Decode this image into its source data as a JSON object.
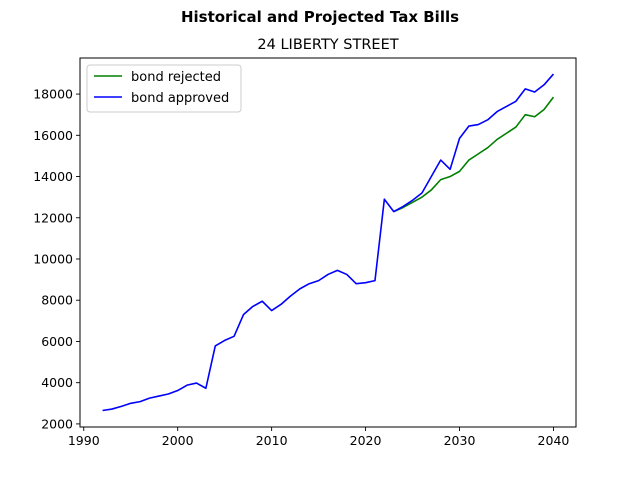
{
  "figure": {
    "suptitle": "Historical and Projected Tax Bills",
    "title": "24 LIBERTY STREET"
  },
  "chart_data": {
    "type": "line",
    "title": "Historical and Projected Tax Bills",
    "subtitle": "24 LIBERTY STREET",
    "xlabel": "",
    "ylabel": "",
    "xlim": [
      1989.6,
      2042.4
    ],
    "ylim": [
      1850,
      19750
    ],
    "xticks": [
      1990,
      2000,
      2010,
      2020,
      2030,
      2040
    ],
    "yticks": [
      2000,
      4000,
      6000,
      8000,
      10000,
      12000,
      14000,
      16000,
      18000
    ],
    "grid": false,
    "legend": {
      "position": "top-left"
    },
    "series": [
      {
        "name": "bond rejected",
        "color": "#008000",
        "x": [
          2023,
          2024,
          2025,
          2026,
          2027,
          2028,
          2029,
          2030,
          2031,
          2032,
          2033,
          2034,
          2035,
          2036,
          2037,
          2038,
          2039,
          2040
        ],
        "y": [
          12300,
          12500,
          12750,
          13000,
          13350,
          13850,
          14000,
          14250,
          14800,
          15100,
          15400,
          15800,
          16100,
          16400,
          17000,
          16900,
          17250,
          17850
        ]
      },
      {
        "name": "bond approved",
        "color": "#0000ff",
        "x": [
          1992,
          1993,
          1994,
          1995,
          1996,
          1997,
          1998,
          1999,
          2000,
          2001,
          2002,
          2003,
          2004,
          2005,
          2006,
          2007,
          2008,
          2009,
          2010,
          2011,
          2012,
          2013,
          2014,
          2015,
          2016,
          2017,
          2018,
          2019,
          2020,
          2021,
          2022,
          2023,
          2024,
          2025,
          2026,
          2027,
          2028,
          2029,
          2030,
          2031,
          2032,
          2033,
          2034,
          2035,
          2036,
          2037,
          2038,
          2039,
          2040
        ],
        "y": [
          2650,
          2720,
          2850,
          3000,
          3080,
          3250,
          3350,
          3450,
          3620,
          3880,
          3980,
          3730,
          5780,
          6050,
          6250,
          7300,
          7700,
          7950,
          7500,
          7800,
          8200,
          8550,
          8800,
          8950,
          9250,
          9450,
          9250,
          8800,
          8850,
          8950,
          12900,
          12300,
          12550,
          12850,
          13200,
          14000,
          14800,
          14350,
          15850,
          16450,
          16520,
          16750,
          17150,
          17400,
          17650,
          18250,
          18100,
          18450,
          18970
        ]
      }
    ]
  }
}
